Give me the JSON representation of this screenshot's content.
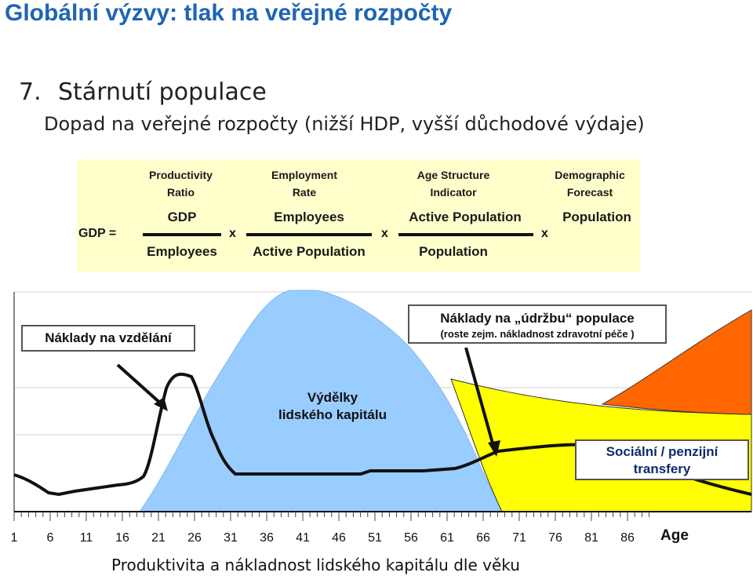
{
  "title": "Globální výzvy: tlak na veřejné rozpočty",
  "point": {
    "number": "7.",
    "heading": "Stárnutí populace"
  },
  "subheading": "Dopad na veřejné rozpočty (nižší HDP, vyšší důchodové výdaje)",
  "formula": {
    "lhs": "GDP =",
    "operator": "x",
    "factors": [
      {
        "label_line1": "Productivity",
        "label_line2": "Ratio",
        "numerator": "GDP",
        "denominator": "Employees"
      },
      {
        "label_line1": "Employment",
        "label_line2": "Rate",
        "numerator": "Employees",
        "denominator": "Active Population"
      },
      {
        "label_line1": "Age Structure",
        "label_line2": "Indicator",
        "numerator": "Active Population",
        "denominator": "Population"
      },
      {
        "label_line1": "Demographic",
        "label_line2": "Forecast",
        "numerator": "Population",
        "denominator": ""
      }
    ]
  },
  "chart": {
    "callouts": {
      "education": "Náklady na vzdělání",
      "maintenance_title": "Náklady na „údržbu“ populace",
      "maintenance_sub": "(roste zejm. nákladnost zdravotní péče )",
      "earnings_line1": "Výdělky",
      "earnings_line2": "lidského kapitálu",
      "transfers_line1": "Sociální / penzijní",
      "transfers_line2": "transfery"
    },
    "x_ticks": [
      "1",
      "6",
      "11",
      "16",
      "21",
      "26",
      "31",
      "36",
      "41",
      "46",
      "51",
      "56",
      "61",
      "66",
      "71",
      "76",
      "81",
      "86"
    ],
    "x_label": "Age",
    "colors": {
      "earnings": "#99ccff",
      "maintenance": "#ffff00",
      "transfers": "#ff6600",
      "line": "#111111"
    }
  },
  "caption": "Produktivita a nákladnost lidského kapitálu dle věku"
}
